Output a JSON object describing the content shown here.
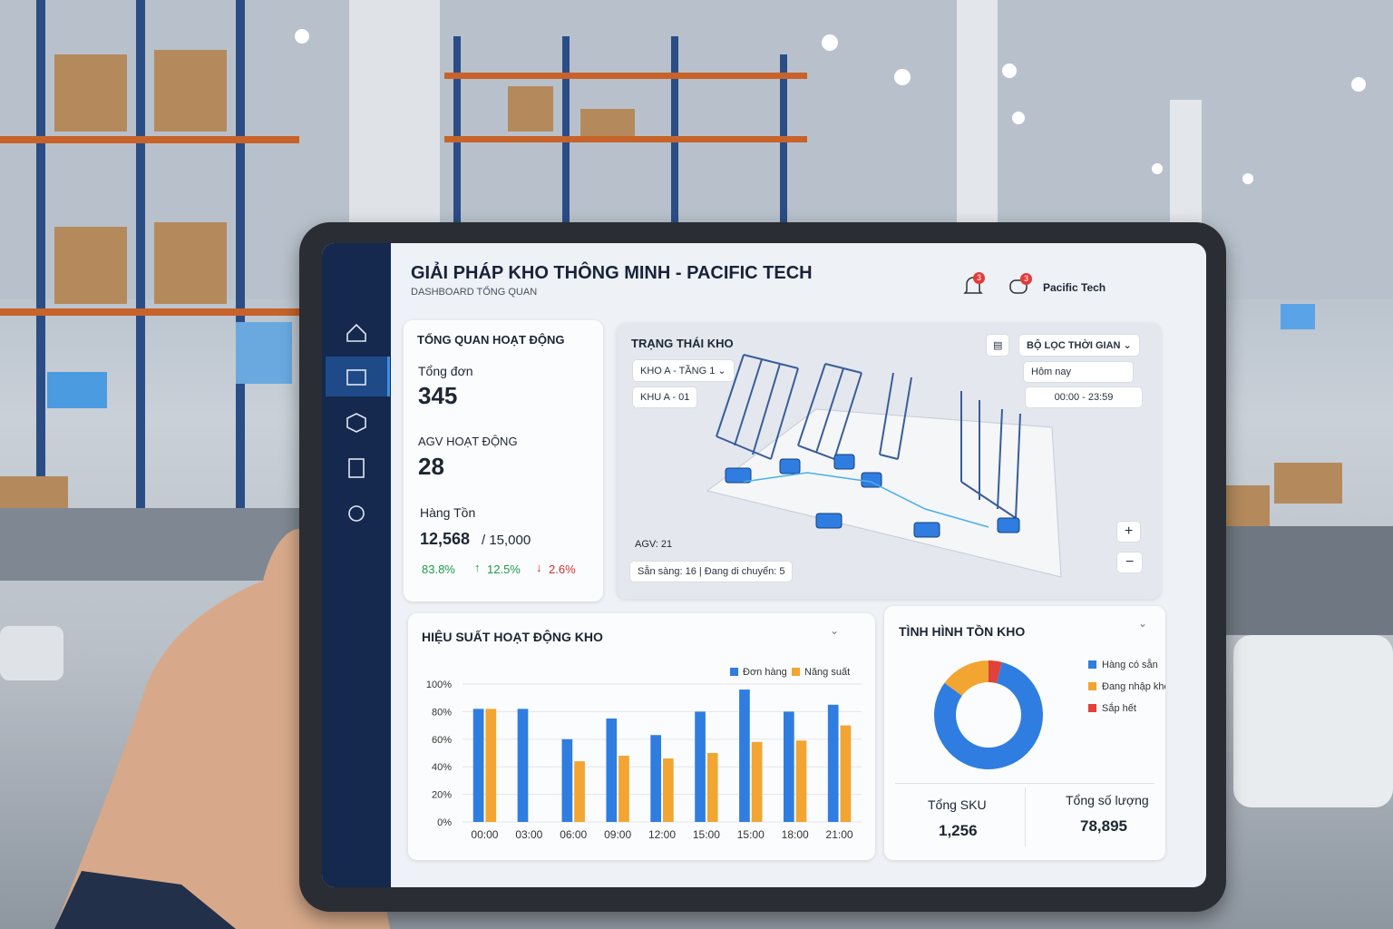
{
  "header": {
    "title": "GIẢI PHÁP KHO THÔNG MINH - PACIFIC TECH",
    "subtitle": "DASHBOARD TỔNG QUAN",
    "notifications": "3",
    "messages": "3",
    "user": "Pacific Tech"
  },
  "overview": {
    "title": "TỔNG QUAN HOẠT ĐỘNG",
    "orders_label": "Tổng đơn",
    "orders": "345",
    "agv_label": "AGV HOẠT ĐỘNG",
    "agv": "28",
    "stock_label": "Hàng Tồn",
    "stock": "12,568",
    "capacity": "/ 15,000",
    "rate": "83.8%",
    "up": "12.5%",
    "down": "2.6%"
  },
  "warehouse": {
    "title": "TRẠNG THÁI KHO",
    "floor": "KHO A - TẦNG 1",
    "zone": "KHU A - 01",
    "filter": "BỘ LỌC THỜI GIAN",
    "date": "Hôm nay",
    "time": "00:00 - 23:59",
    "agv": "AGV: 21",
    "status": "Sẵn sàng: 16 | Đang di chuyển: 5"
  },
  "chart_data": [
    {
      "type": "bar",
      "title": "HIỆU SUẤT HOẠT ĐỘNG KHO",
      "categories": [
        "00:00",
        "03:00",
        "06:00",
        "09:00",
        "12:00",
        "15:00",
        "15:00",
        "18:00",
        "21:00"
      ],
      "series": [
        {
          "name": "Đơn hàng",
          "color": "#2f7de1",
          "values": [
            82,
            82,
            60,
            75,
            63,
            80,
            96,
            80,
            85
          ]
        },
        {
          "name": "Năng suất",
          "color": "#f2a531",
          "values": [
            82,
            null,
            44,
            48,
            46,
            50,
            58,
            59,
            70
          ]
        }
      ],
      "ylim": [
        0,
        100
      ],
      "yticks": [
        {
          "value": 0,
          "label": "0%"
        },
        {
          "value": 20,
          "label": "20%"
        },
        {
          "value": 40,
          "label": "40%"
        },
        {
          "value": 60,
          "label": "60%"
        },
        {
          "value": 80,
          "label": "80%"
        },
        {
          "value": 100,
          "label": "100%"
        }
      ],
      "grid": true
    },
    {
      "type": "pie",
      "title": "TÌNH HÌNH TỒN KHO",
      "categories": [
        "Hàng có sẵn",
        "Đang nhập kho",
        "Sắp hết"
      ],
      "values": [
        81,
        15,
        4
      ],
      "colors": [
        "#2f7de1",
        "#f2a531",
        "#e0413a"
      ]
    }
  ],
  "inventory": {
    "sku_label": "Tổng SKU",
    "sku": "1,256",
    "qty_label": "Tổng số lượng",
    "qty": "78,895"
  }
}
